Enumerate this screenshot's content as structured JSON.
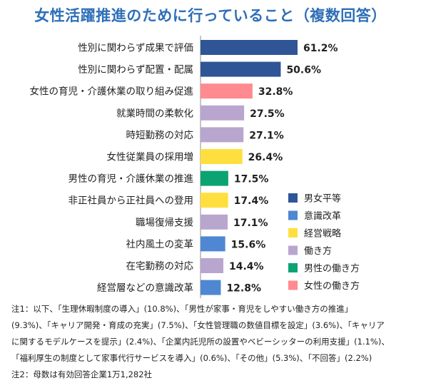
{
  "title": "女性活躍推進のために行っていること（複数回答）",
  "chart_data": {
    "type": "bar",
    "orientation": "horizontal",
    "categories": [
      "性別に関わらず成果で評価",
      "性別に関わらず配置・配属",
      "女性の育児・介護休業の取り組み促進",
      "就業時間の柔軟化",
      "時短勤務の対応",
      "女性従業員の採用増",
      "男性の育児・介護休業の推進",
      "非正社員から正社員への登用",
      "職場復帰支援",
      "社内風土の変革",
      "在宅勤務の対応",
      "経営層などの意識改革"
    ],
    "values": [
      61.2,
      50.6,
      32.8,
      27.5,
      27.1,
      26.4,
      17.5,
      17.4,
      17.1,
      15.6,
      14.4,
      12.8
    ],
    "value_labels": [
      "61.2%",
      "50.6%",
      "32.8%",
      "27.5%",
      "27.1%",
      "26.4%",
      "17.5%",
      "17.4%",
      "17.1%",
      "15.6%",
      "14.4%",
      "12.8%"
    ],
    "groups": [
      "男女平等",
      "男女平等",
      "女性の働き方",
      "働き方",
      "働き方",
      "経営戦略",
      "男性の働き方",
      "経営戦略",
      "働き方",
      "意識改革",
      "働き方",
      "意識改革"
    ],
    "legend": [
      {
        "name": "男女平等",
        "color": "#2f5597"
      },
      {
        "name": "意識改革",
        "color": "#4f87d2"
      },
      {
        "name": "経営戦略",
        "color": "#ffdf3f"
      },
      {
        "name": "働き方",
        "color": "#b8a6cf"
      },
      {
        "name": "男性の働き方",
        "color": "#0ca373"
      },
      {
        "name": "女性の働き方",
        "color": "#ff8a8f"
      }
    ],
    "xlim": [
      0,
      70
    ],
    "legend_position": "bottom-right",
    "grid": false
  },
  "notes": [
    "注1：以下、「生理休暇制度の導入」(10.8%)、「男性が家事・育児をしやすい働き方の推進」",
    "(9.3%)、「キャリア開発・育成の充実」(7.5%)、「女性管理職の数値目標を設定」(3.6%)、「キャリア",
    "に関するモデルケースを提示」(2.4%)、「企業内託児所の設置やベビーシッターの利用支援」(1.1%)、",
    "「福利厚生の制度として家事代行サービスを導入」(0.6%)、「その他」(5.3%)、「不回答」(2.2%)",
    "注2：母数は有効回答企業1万1,282社"
  ]
}
